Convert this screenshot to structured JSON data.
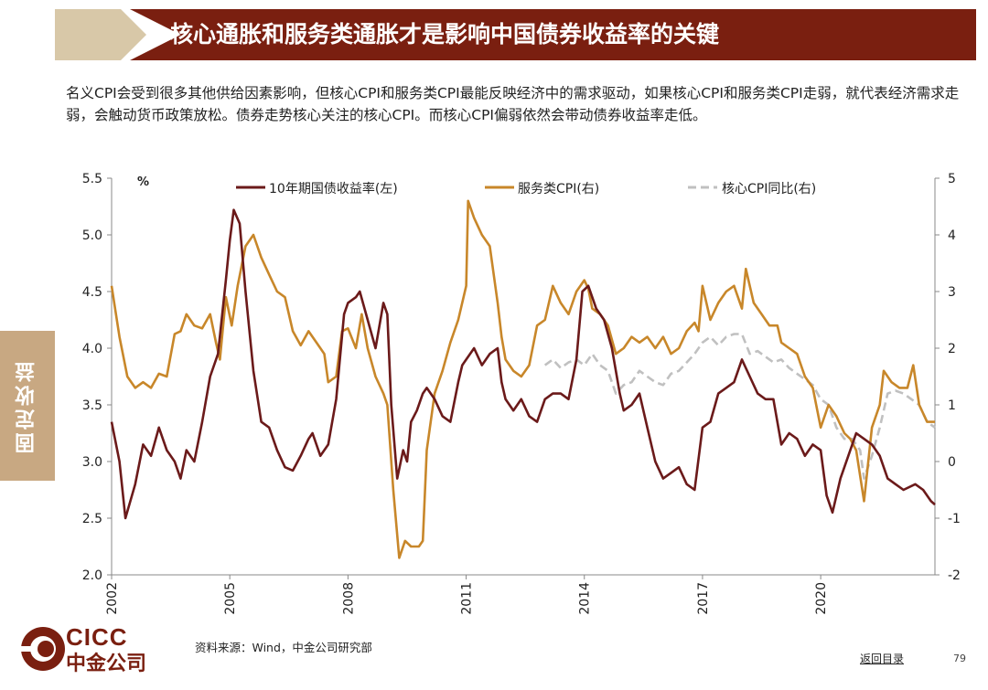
{
  "header": {
    "title": "核心通胀和服务类通胀才是影响中国债券收益率的关键"
  },
  "intro": {
    "text": "名义CPI会受到很多其他供给因素影响，但核心CPI和服务类CPI最能反映经济中的需求驱动，如果核心CPI和服务类CPI走弱，就代表经济需求走弱，会触动货币政策放松。债券走势核心关注的核心CPI。而核心CPI偏弱依然会带动债券收益率走低。"
  },
  "side_tab": {
    "label": "固定收益"
  },
  "footer": {
    "source": "资料来源：Wind，中金公司研究部",
    "nav_link": "返回目录",
    "page_number": "79"
  },
  "logo": {
    "en": "CICC",
    "cn": "中金公司"
  },
  "colors": {
    "brand": "#7a1f10",
    "accent": "#d8c8a8",
    "bond": "#6b1a1a",
    "services": "#c8872a",
    "core": "#c0c0c0"
  },
  "chart_data": {
    "type": "line",
    "unit_label": "%",
    "y_left": {
      "min": 2.0,
      "max": 5.5,
      "ticks": [
        "2.0",
        "2.5",
        "3.0",
        "3.5",
        "4.0",
        "4.5",
        "5.0",
        "5.5"
      ]
    },
    "y_right": {
      "min": -2,
      "max": 5,
      "ticks": [
        "-2",
        "-1",
        "0",
        "1",
        "2",
        "3",
        "4",
        "5"
      ]
    },
    "x_range": [
      2002,
      2022.9
    ],
    "x_ticks": [
      "2002",
      "2005",
      "2008",
      "2011",
      "2014",
      "2017",
      "2020"
    ],
    "series": [
      {
        "name": "10年期国债收益率(左)",
        "axis": "left",
        "style": "solid",
        "points": [
          [
            2002.0,
            3.35
          ],
          [
            2002.2,
            3.0
          ],
          [
            2002.35,
            2.5
          ],
          [
            2002.6,
            2.8
          ],
          [
            2002.8,
            3.15
          ],
          [
            2003.0,
            3.05
          ],
          [
            2003.2,
            3.3
          ],
          [
            2003.4,
            3.1
          ],
          [
            2003.6,
            3.0
          ],
          [
            2003.75,
            2.85
          ],
          [
            2003.9,
            3.1
          ],
          [
            2004.1,
            3.0
          ],
          [
            2004.3,
            3.35
          ],
          [
            2004.5,
            3.75
          ],
          [
            2004.7,
            3.95
          ],
          [
            2004.9,
            4.6
          ],
          [
            2005.0,
            4.95
          ],
          [
            2005.1,
            5.22
          ],
          [
            2005.25,
            5.1
          ],
          [
            2005.4,
            4.5
          ],
          [
            2005.6,
            3.8
          ],
          [
            2005.8,
            3.35
          ],
          [
            2006.0,
            3.3
          ],
          [
            2006.2,
            3.1
          ],
          [
            2006.4,
            2.95
          ],
          [
            2006.6,
            2.92
          ],
          [
            2006.8,
            3.05
          ],
          [
            2007.0,
            3.2
          ],
          [
            2007.1,
            3.25
          ],
          [
            2007.3,
            3.05
          ],
          [
            2007.5,
            3.15
          ],
          [
            2007.7,
            3.55
          ],
          [
            2007.9,
            4.3
          ],
          [
            2008.0,
            4.4
          ],
          [
            2008.2,
            4.45
          ],
          [
            2008.3,
            4.5
          ],
          [
            2008.5,
            4.25
          ],
          [
            2008.7,
            4.0
          ],
          [
            2008.9,
            4.4
          ],
          [
            2009.0,
            4.3
          ],
          [
            2009.1,
            3.5
          ],
          [
            2009.25,
            2.85
          ],
          [
            2009.4,
            3.1
          ],
          [
            2009.5,
            3.0
          ],
          [
            2009.6,
            3.35
          ],
          [
            2009.75,
            3.45
          ],
          [
            2009.9,
            3.6
          ],
          [
            2010.0,
            3.65
          ],
          [
            2010.2,
            3.55
          ],
          [
            2010.4,
            3.4
          ],
          [
            2010.6,
            3.35
          ],
          [
            2010.8,
            3.7
          ],
          [
            2010.9,
            3.85
          ],
          [
            2011.0,
            3.9
          ],
          [
            2011.2,
            4.0
          ],
          [
            2011.4,
            3.85
          ],
          [
            2011.6,
            3.95
          ],
          [
            2011.8,
            4.0
          ],
          [
            2011.9,
            3.7
          ],
          [
            2012.0,
            3.55
          ],
          [
            2012.2,
            3.45
          ],
          [
            2012.4,
            3.55
          ],
          [
            2012.6,
            3.4
          ],
          [
            2012.8,
            3.35
          ],
          [
            2013.0,
            3.55
          ],
          [
            2013.2,
            3.6
          ],
          [
            2013.4,
            3.6
          ],
          [
            2013.6,
            3.55
          ],
          [
            2013.8,
            3.9
          ],
          [
            2013.95,
            4.5
          ],
          [
            2014.1,
            4.55
          ],
          [
            2014.3,
            4.35
          ],
          [
            2014.5,
            4.25
          ],
          [
            2014.7,
            4.0
          ],
          [
            2014.9,
            3.6
          ],
          [
            2015.0,
            3.45
          ],
          [
            2015.2,
            3.5
          ],
          [
            2015.4,
            3.6
          ],
          [
            2015.6,
            3.3
          ],
          [
            2015.8,
            3.0
          ],
          [
            2016.0,
            2.85
          ],
          [
            2016.2,
            2.9
          ],
          [
            2016.4,
            2.95
          ],
          [
            2016.6,
            2.8
          ],
          [
            2016.8,
            2.75
          ],
          [
            2017.0,
            3.3
          ],
          [
            2017.2,
            3.35
          ],
          [
            2017.4,
            3.6
          ],
          [
            2017.6,
            3.65
          ],
          [
            2017.8,
            3.7
          ],
          [
            2018.0,
            3.9
          ],
          [
            2018.2,
            3.75
          ],
          [
            2018.4,
            3.6
          ],
          [
            2018.6,
            3.55
          ],
          [
            2018.8,
            3.55
          ],
          [
            2019.0,
            3.15
          ],
          [
            2019.2,
            3.25
          ],
          [
            2019.4,
            3.2
          ],
          [
            2019.6,
            3.05
          ],
          [
            2019.8,
            3.15
          ],
          [
            2020.0,
            3.1
          ],
          [
            2020.15,
            2.7
          ],
          [
            2020.3,
            2.55
          ],
          [
            2020.5,
            2.85
          ],
          [
            2020.7,
            3.05
          ],
          [
            2020.9,
            3.25
          ],
          [
            2021.1,
            3.2
          ],
          [
            2021.3,
            3.15
          ],
          [
            2021.5,
            3.05
          ],
          [
            2021.7,
            2.85
          ],
          [
            2021.9,
            2.8
          ],
          [
            2022.1,
            2.75
          ],
          [
            2022.4,
            2.8
          ],
          [
            2022.6,
            2.75
          ],
          [
            2022.8,
            2.65
          ],
          [
            2022.9,
            2.62
          ]
        ]
      },
      {
        "name": "服务类CPI(右)",
        "axis": "right",
        "style": "solid",
        "points": [
          [
            2002.0,
            3.1
          ],
          [
            2002.2,
            2.2
          ],
          [
            2002.4,
            1.5
          ],
          [
            2002.6,
            1.3
          ],
          [
            2002.8,
            1.4
          ],
          [
            2003.0,
            1.3
          ],
          [
            2003.2,
            1.55
          ],
          [
            2003.4,
            1.5
          ],
          [
            2003.6,
            2.25
          ],
          [
            2003.75,
            2.3
          ],
          [
            2003.9,
            2.6
          ],
          [
            2004.1,
            2.4
          ],
          [
            2004.3,
            2.35
          ],
          [
            2004.5,
            2.6
          ],
          [
            2004.65,
            2.1
          ],
          [
            2004.75,
            1.8
          ],
          [
            2004.9,
            2.9
          ],
          [
            2005.05,
            2.4
          ],
          [
            2005.2,
            3.1
          ],
          [
            2005.4,
            3.8
          ],
          [
            2005.6,
            4.0
          ],
          [
            2005.8,
            3.6
          ],
          [
            2006.0,
            3.3
          ],
          [
            2006.2,
            3.0
          ],
          [
            2006.4,
            2.9
          ],
          [
            2006.6,
            2.3
          ],
          [
            2006.8,
            2.05
          ],
          [
            2007.0,
            2.3
          ],
          [
            2007.2,
            2.1
          ],
          [
            2007.4,
            1.9
          ],
          [
            2007.5,
            1.4
          ],
          [
            2007.7,
            1.5
          ],
          [
            2007.85,
            2.3
          ],
          [
            2008.0,
            2.35
          ],
          [
            2008.2,
            2.0
          ],
          [
            2008.35,
            2.6
          ],
          [
            2008.5,
            2.0
          ],
          [
            2008.7,
            1.5
          ],
          [
            2008.9,
            1.2
          ],
          [
            2009.0,
            1.0
          ],
          [
            2009.15,
            -0.5
          ],
          [
            2009.3,
            -1.7
          ],
          [
            2009.45,
            -1.4
          ],
          [
            2009.6,
            -1.5
          ],
          [
            2009.8,
            -1.5
          ],
          [
            2009.9,
            -1.4
          ],
          [
            2010.0,
            0.2
          ],
          [
            2010.2,
            1.2
          ],
          [
            2010.4,
            1.6
          ],
          [
            2010.6,
            2.1
          ],
          [
            2010.8,
            2.5
          ],
          [
            2011.0,
            3.1
          ],
          [
            2011.05,
            4.6
          ],
          [
            2011.2,
            4.3
          ],
          [
            2011.4,
            4.0
          ],
          [
            2011.6,
            3.8
          ],
          [
            2011.8,
            2.8
          ],
          [
            2011.9,
            2.2
          ],
          [
            2012.0,
            1.8
          ],
          [
            2012.2,
            1.6
          ],
          [
            2012.4,
            1.5
          ],
          [
            2012.6,
            1.7
          ],
          [
            2012.8,
            2.4
          ],
          [
            2013.0,
            2.5
          ],
          [
            2013.2,
            3.1
          ],
          [
            2013.4,
            2.8
          ],
          [
            2013.6,
            2.6
          ],
          [
            2013.8,
            3.0
          ],
          [
            2014.0,
            3.2
          ],
          [
            2014.1,
            3.05
          ],
          [
            2014.2,
            2.7
          ],
          [
            2014.4,
            2.6
          ],
          [
            2014.6,
            2.4
          ],
          [
            2014.8,
            1.9
          ],
          [
            2015.0,
            2.0
          ],
          [
            2015.2,
            2.2
          ],
          [
            2015.4,
            2.1
          ],
          [
            2015.6,
            2.2
          ],
          [
            2015.8,
            2.0
          ],
          [
            2016.0,
            2.2
          ],
          [
            2016.2,
            1.9
          ],
          [
            2016.4,
            2.0
          ],
          [
            2016.6,
            2.3
          ],
          [
            2016.8,
            2.45
          ],
          [
            2016.9,
            2.3
          ],
          [
            2017.0,
            3.1
          ],
          [
            2017.2,
            2.5
          ],
          [
            2017.4,
            2.8
          ],
          [
            2017.6,
            3.0
          ],
          [
            2017.8,
            3.1
          ],
          [
            2018.0,
            2.7
          ],
          [
            2018.1,
            3.4
          ],
          [
            2018.3,
            2.8
          ],
          [
            2018.5,
            2.6
          ],
          [
            2018.7,
            2.4
          ],
          [
            2018.9,
            2.4
          ],
          [
            2019.0,
            2.1
          ],
          [
            2019.2,
            2.0
          ],
          [
            2019.4,
            1.9
          ],
          [
            2019.6,
            1.5
          ],
          [
            2019.8,
            1.3
          ],
          [
            2020.0,
            0.6
          ],
          [
            2020.2,
            1.0
          ],
          [
            2020.4,
            0.8
          ],
          [
            2020.6,
            0.5
          ],
          [
            2020.75,
            0.4
          ],
          [
            2020.9,
            0.2
          ],
          [
            2021.1,
            -0.7
          ],
          [
            2021.3,
            0.6
          ],
          [
            2021.5,
            1.0
          ],
          [
            2021.6,
            1.6
          ],
          [
            2021.8,
            1.4
          ],
          [
            2022.0,
            1.3
          ],
          [
            2022.2,
            1.3
          ],
          [
            2022.35,
            1.7
          ],
          [
            2022.5,
            1.0
          ],
          [
            2022.7,
            0.7
          ],
          [
            2022.9,
            0.7
          ]
        ]
      },
      {
        "name": "核心CPI同比(右)",
        "axis": "right",
        "style": "dashed",
        "points": [
          [
            2013.0,
            1.7
          ],
          [
            2013.2,
            1.8
          ],
          [
            2013.4,
            1.65
          ],
          [
            2013.6,
            1.75
          ],
          [
            2013.8,
            1.8
          ],
          [
            2014.0,
            1.7
          ],
          [
            2014.2,
            1.9
          ],
          [
            2014.4,
            1.7
          ],
          [
            2014.6,
            1.6
          ],
          [
            2014.8,
            1.2
          ],
          [
            2015.0,
            1.35
          ],
          [
            2015.2,
            1.4
          ],
          [
            2015.4,
            1.6
          ],
          [
            2015.6,
            1.5
          ],
          [
            2015.8,
            1.4
          ],
          [
            2016.0,
            1.35
          ],
          [
            2016.2,
            1.55
          ],
          [
            2016.4,
            1.6
          ],
          [
            2016.6,
            1.75
          ],
          [
            2016.8,
            1.9
          ],
          [
            2017.0,
            2.1
          ],
          [
            2017.2,
            2.2
          ],
          [
            2017.4,
            2.05
          ],
          [
            2017.6,
            2.2
          ],
          [
            2017.8,
            2.25
          ],
          [
            2018.0,
            2.25
          ],
          [
            2018.2,
            1.9
          ],
          [
            2018.4,
            1.95
          ],
          [
            2018.6,
            1.85
          ],
          [
            2018.8,
            1.75
          ],
          [
            2019.0,
            1.8
          ],
          [
            2019.2,
            1.65
          ],
          [
            2019.4,
            1.55
          ],
          [
            2019.6,
            1.45
          ],
          [
            2019.8,
            1.35
          ],
          [
            2020.0,
            1.1
          ],
          [
            2020.2,
            1.0
          ],
          [
            2020.4,
            0.6
          ],
          [
            2020.6,
            0.4
          ],
          [
            2020.8,
            0.4
          ],
          [
            2021.0,
            0.2
          ],
          [
            2021.1,
            -0.3
          ],
          [
            2021.3,
            0.1
          ],
          [
            2021.5,
            0.6
          ],
          [
            2021.7,
            1.2
          ],
          [
            2021.9,
            1.25
          ],
          [
            2022.1,
            1.2
          ],
          [
            2022.3,
            1.1
          ],
          [
            2022.5,
            1.0
          ],
          [
            2022.7,
            0.7
          ],
          [
            2022.9,
            0.6
          ]
        ]
      }
    ]
  }
}
